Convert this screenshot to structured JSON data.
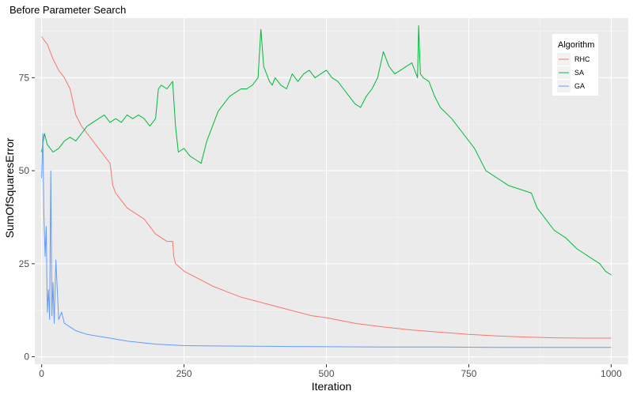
{
  "chart_data": {
    "type": "line",
    "title": "Before Parameter Search",
    "xlabel": "Iteration",
    "ylabel": "SumOfSquaresError",
    "xlim": [
      -12,
      1030
    ],
    "ylim": [
      -2,
      91
    ],
    "x_ticks": [
      0,
      250,
      500,
      750,
      1000
    ],
    "y_ticks": [
      0,
      25,
      50,
      75
    ],
    "grid": true,
    "legend": {
      "title": "Algorithm",
      "placement": "top-right"
    },
    "series": [
      {
        "name": "RHC",
        "color": "#F8766D",
        "x": [
          0,
          5,
          10,
          15,
          20,
          30,
          40,
          50,
          60,
          70,
          80,
          90,
          100,
          110,
          120,
          125,
          130,
          140,
          150,
          160,
          170,
          180,
          190,
          200,
          210,
          220,
          230,
          232,
          235,
          250,
          275,
          300,
          325,
          350,
          375,
          400,
          425,
          450,
          475,
          500,
          550,
          600,
          650,
          700,
          750,
          800,
          850,
          900,
          950,
          1000
        ],
        "y": [
          86,
          85,
          84,
          82,
          80,
          77,
          75,
          72,
          65,
          62,
          60,
          58,
          56,
          54,
          52,
          46,
          44,
          42,
          40,
          39,
          38,
          37,
          35,
          33,
          32,
          31,
          31,
          27,
          25,
          23,
          21,
          19,
          17.5,
          16,
          15,
          14,
          13,
          12,
          11,
          10.5,
          9,
          8,
          7.2,
          6.6,
          6,
          5.6,
          5.3,
          5.1,
          5.0,
          5.0
        ]
      },
      {
        "name": "SA",
        "color": "#00BA38",
        "x": [
          0,
          5,
          10,
          20,
          30,
          40,
          50,
          60,
          70,
          80,
          90,
          100,
          110,
          120,
          130,
          140,
          150,
          160,
          170,
          180,
          190,
          200,
          205,
          210,
          220,
          230,
          235,
          240,
          250,
          260,
          270,
          280,
          290,
          300,
          310,
          320,
          330,
          340,
          350,
          360,
          370,
          380,
          385,
          390,
          395,
          400,
          405,
          410,
          420,
          430,
          440,
          450,
          460,
          470,
          480,
          490,
          500,
          510,
          520,
          530,
          540,
          550,
          560,
          570,
          580,
          590,
          600,
          610,
          620,
          630,
          640,
          650,
          660,
          662,
          665,
          670,
          680,
          690,
          700,
          720,
          740,
          760,
          780,
          800,
          820,
          840,
          860,
          870,
          880,
          900,
          920,
          940,
          960,
          980,
          990,
          1000
        ],
        "y": [
          55,
          60,
          57,
          55,
          56,
          58,
          59,
          58,
          60,
          62,
          63,
          64,
          65,
          63,
          64,
          63,
          65,
          64,
          65,
          64,
          62,
          64,
          72,
          73,
          72,
          74,
          62,
          55,
          56,
          54,
          53,
          52,
          58,
          62,
          66,
          68,
          70,
          71,
          72,
          72,
          73,
          75,
          88,
          78,
          76,
          74,
          73,
          75,
          73,
          72,
          76,
          74,
          76,
          77,
          75,
          76,
          77,
          75,
          74,
          72,
          70,
          68,
          67,
          70,
          72,
          75,
          82,
          78,
          76,
          77,
          78,
          79,
          75,
          89,
          76,
          75,
          74,
          70,
          67,
          64,
          60,
          56,
          50,
          48,
          46,
          45,
          44,
          40,
          38,
          34,
          32,
          29,
          27,
          25,
          23,
          22
        ]
      },
      {
        "name": "GA",
        "color": "#619CFF",
        "x": [
          0,
          2,
          4,
          6,
          8,
          10,
          12,
          14,
          16,
          18,
          20,
          22,
          25,
          30,
          35,
          40,
          50,
          60,
          70,
          80,
          100,
          120,
          150,
          200,
          250,
          300,
          400,
          500,
          600,
          700,
          800,
          900,
          1000
        ],
        "y": [
          48,
          60,
          38,
          27,
          35,
          12,
          18,
          10,
          50,
          11,
          20,
          9,
          26,
          10,
          12,
          9,
          8,
          7,
          6.5,
          6,
          5.5,
          5,
          4.2,
          3.4,
          3.0,
          2.9,
          2.8,
          2.7,
          2.6,
          2.6,
          2.5,
          2.5,
          2.5
        ]
      }
    ]
  }
}
